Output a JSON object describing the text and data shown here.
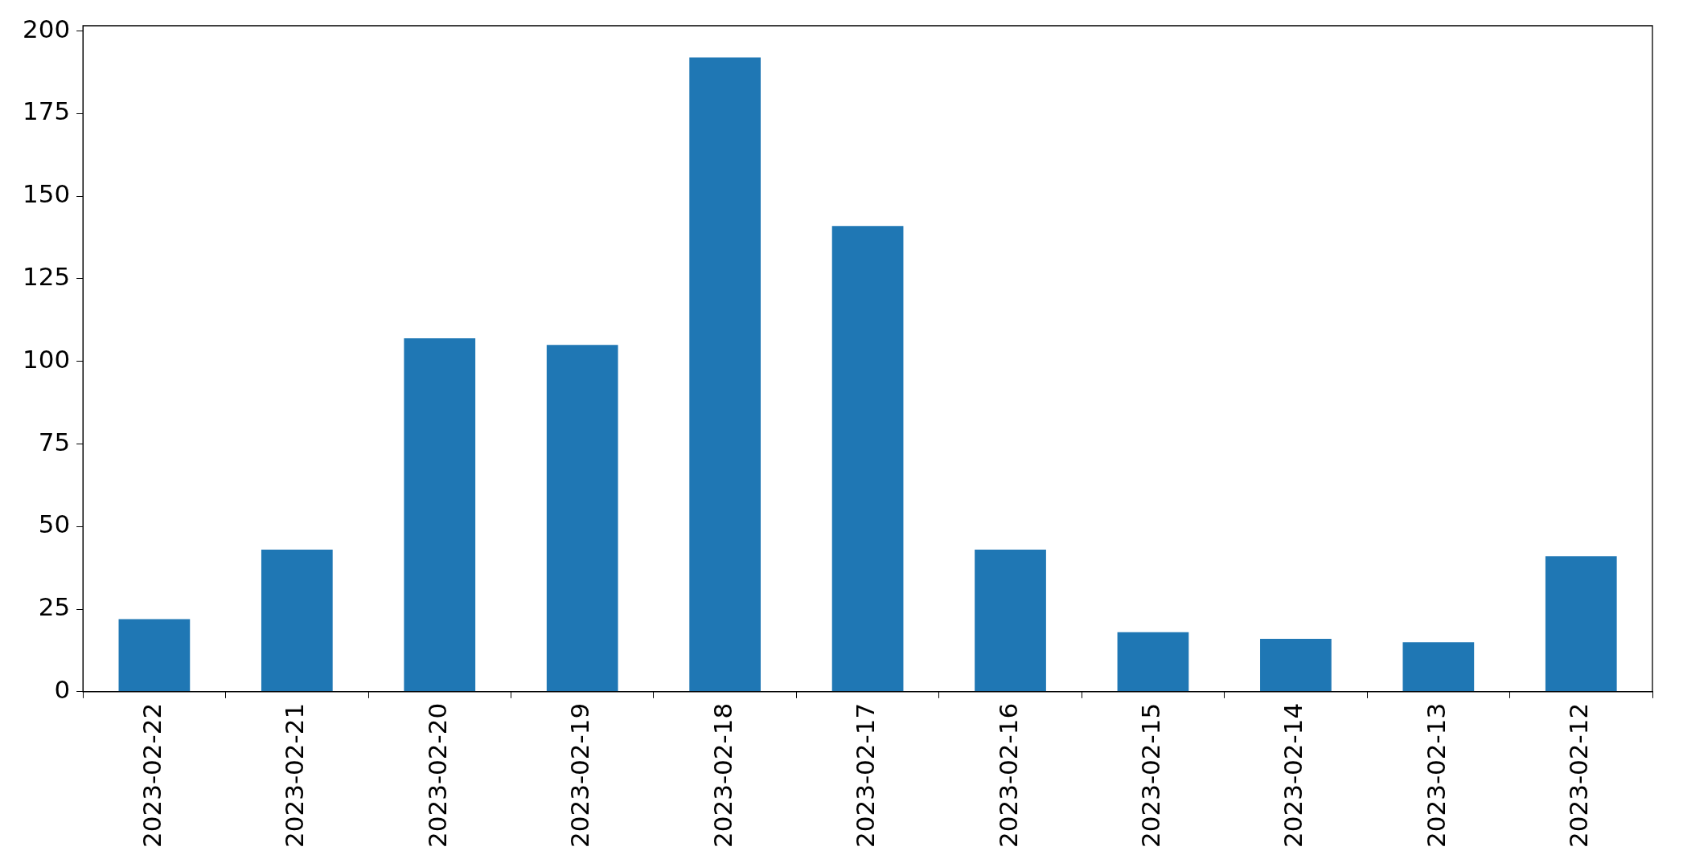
{
  "chart_data": {
    "type": "bar",
    "categories": [
      "2023-02-22",
      "2023-02-21",
      "2023-02-20",
      "2023-02-19",
      "2023-02-18",
      "2023-02-17",
      "2023-02-16",
      "2023-02-15",
      "2023-02-14",
      "2023-02-13",
      "2023-02-12"
    ],
    "values": [
      22,
      43,
      107,
      105,
      192,
      141,
      43,
      18,
      16,
      15,
      41
    ],
    "color": "#1f77b4",
    "ylim": [
      0,
      201.6
    ],
    "yticks": [
      0,
      25,
      50,
      75,
      100,
      125,
      150,
      175,
      200
    ],
    "grid": false,
    "legend": false
  }
}
